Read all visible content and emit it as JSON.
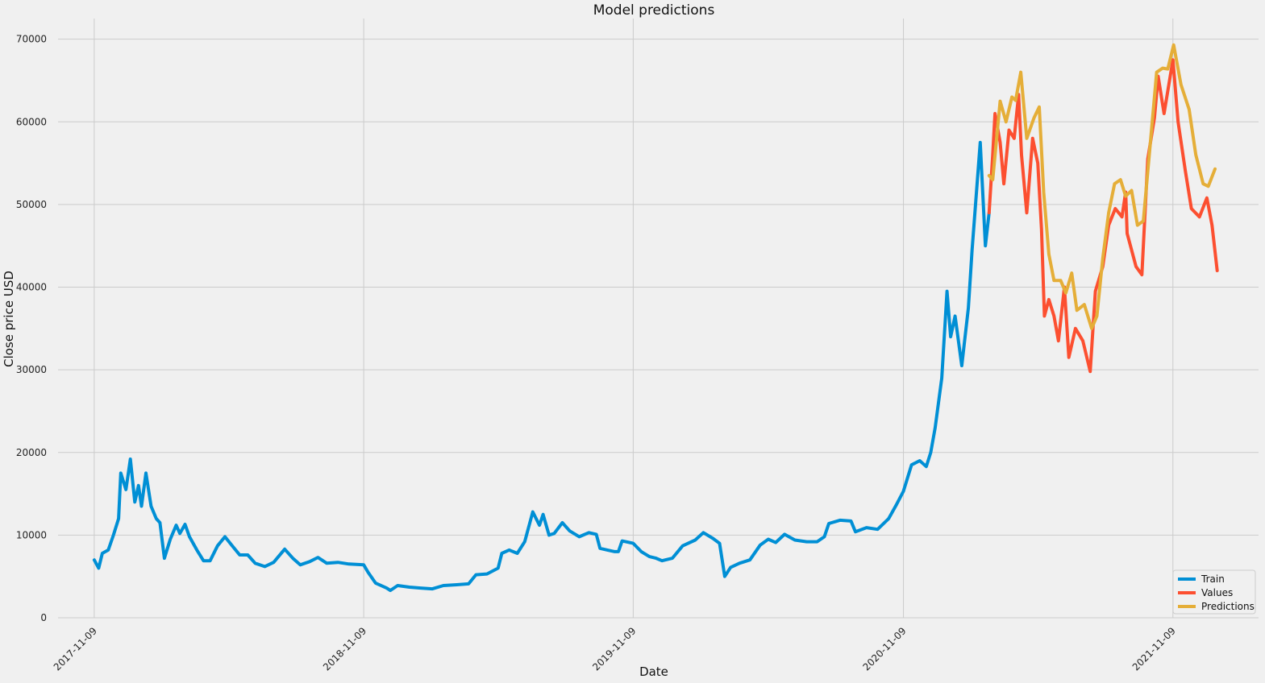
{
  "chart_data": {
    "type": "line",
    "title": "Model predictions",
    "xlabel": "Date",
    "ylabel": "Close price USD",
    "xlim": [
      "2017-09-21",
      "2022-03-05"
    ],
    "ylim": [
      0,
      72500
    ],
    "grid": true,
    "legend_position": "bottom-right",
    "xticks": [
      "2017-11-09",
      "2018-11-09",
      "2019-11-09",
      "2020-11-09",
      "2021-11-09"
    ],
    "yticks": [
      0,
      10000,
      20000,
      30000,
      40000,
      50000,
      60000,
      70000
    ],
    "series": [
      {
        "name": "Train",
        "color": "#008fd5",
        "points": [
          [
            "2017-11-09",
            7000
          ],
          [
            "2017-11-15",
            6000
          ],
          [
            "2017-11-20",
            7800
          ],
          [
            "2017-11-28",
            8200
          ],
          [
            "2017-12-05",
            10000
          ],
          [
            "2017-12-12",
            12000
          ],
          [
            "2017-12-15",
            17500
          ],
          [
            "2017-12-22",
            15500
          ],
          [
            "2017-12-28",
            19200
          ],
          [
            "2018-01-03",
            14000
          ],
          [
            "2018-01-08",
            16000
          ],
          [
            "2018-01-12",
            13500
          ],
          [
            "2018-01-18",
            17500
          ],
          [
            "2018-01-25",
            13500
          ],
          [
            "2018-02-01",
            12000
          ],
          [
            "2018-02-06",
            11500
          ],
          [
            "2018-02-12",
            7200
          ],
          [
            "2018-02-20",
            9500
          ],
          [
            "2018-02-28",
            11200
          ],
          [
            "2018-03-05",
            10200
          ],
          [
            "2018-03-12",
            11300
          ],
          [
            "2018-03-18",
            9800
          ],
          [
            "2018-03-28",
            8200
          ],
          [
            "2018-04-06",
            6900
          ],
          [
            "2018-04-15",
            6900
          ],
          [
            "2018-04-25",
            8700
          ],
          [
            "2018-05-05",
            9800
          ],
          [
            "2018-05-15",
            8700
          ],
          [
            "2018-05-25",
            7600
          ],
          [
            "2018-06-05",
            7600
          ],
          [
            "2018-06-15",
            6600
          ],
          [
            "2018-06-28",
            6200
          ],
          [
            "2018-07-10",
            6700
          ],
          [
            "2018-07-25",
            8300
          ],
          [
            "2018-08-05",
            7200
          ],
          [
            "2018-08-15",
            6400
          ],
          [
            "2018-08-28",
            6800
          ],
          [
            "2018-09-08",
            7300
          ],
          [
            "2018-09-20",
            6600
          ],
          [
            "2018-10-05",
            6700
          ],
          [
            "2018-10-20",
            6500
          ],
          [
            "2018-11-09",
            6400
          ],
          [
            "2018-11-15",
            5500
          ],
          [
            "2018-11-25",
            4200
          ],
          [
            "2018-12-10",
            3600
          ],
          [
            "2018-12-15",
            3300
          ],
          [
            "2018-12-25",
            3900
          ],
          [
            "2019-01-10",
            3700
          ],
          [
            "2019-01-25",
            3600
          ],
          [
            "2019-02-10",
            3500
          ],
          [
            "2019-02-25",
            3900
          ],
          [
            "2019-03-15",
            4000
          ],
          [
            "2019-03-31",
            4100
          ],
          [
            "2019-04-10",
            5200
          ],
          [
            "2019-04-25",
            5300
          ],
          [
            "2019-05-10",
            6000
          ],
          [
            "2019-05-15",
            7800
          ],
          [
            "2019-05-25",
            8200
          ],
          [
            "2019-06-05",
            7800
          ],
          [
            "2019-06-15",
            9200
          ],
          [
            "2019-06-26",
            12800
          ],
          [
            "2019-07-05",
            11200
          ],
          [
            "2019-07-10",
            12500
          ],
          [
            "2019-07-18",
            10000
          ],
          [
            "2019-07-25",
            10200
          ],
          [
            "2019-08-05",
            11500
          ],
          [
            "2019-08-15",
            10500
          ],
          [
            "2019-08-28",
            9800
          ],
          [
            "2019-09-10",
            10300
          ],
          [
            "2019-09-20",
            10100
          ],
          [
            "2019-09-25",
            8400
          ],
          [
            "2019-10-05",
            8200
          ],
          [
            "2019-10-15",
            8000
          ],
          [
            "2019-10-20",
            8000
          ],
          [
            "2019-10-25",
            9300
          ],
          [
            "2019-11-09",
            9000
          ],
          [
            "2019-11-20",
            8000
          ],
          [
            "2019-12-01",
            7400
          ],
          [
            "2019-12-10",
            7200
          ],
          [
            "2019-12-18",
            6900
          ],
          [
            "2020-01-01",
            7200
          ],
          [
            "2020-01-15",
            8700
          ],
          [
            "2020-02-01",
            9400
          ],
          [
            "2020-02-12",
            10300
          ],
          [
            "2020-02-25",
            9600
          ],
          [
            "2020-03-05",
            9000
          ],
          [
            "2020-03-12",
            5000
          ],
          [
            "2020-03-20",
            6100
          ],
          [
            "2020-04-01",
            6600
          ],
          [
            "2020-04-15",
            7000
          ],
          [
            "2020-04-29",
            8800
          ],
          [
            "2020-05-10",
            9500
          ],
          [
            "2020-05-20",
            9100
          ],
          [
            "2020-06-01",
            10100
          ],
          [
            "2020-06-15",
            9400
          ],
          [
            "2020-07-01",
            9200
          ],
          [
            "2020-07-15",
            9200
          ],
          [
            "2020-07-25",
            9800
          ],
          [
            "2020-07-31",
            11400
          ],
          [
            "2020-08-15",
            11800
          ],
          [
            "2020-08-30",
            11700
          ],
          [
            "2020-09-05",
            10400
          ],
          [
            "2020-09-20",
            10900
          ],
          [
            "2020-10-05",
            10700
          ],
          [
            "2020-10-20",
            12000
          ],
          [
            "2020-10-30",
            13600
          ],
          [
            "2020-11-09",
            15300
          ],
          [
            "2020-11-20",
            18500
          ],
          [
            "2020-12-01",
            19000
          ],
          [
            "2020-12-10",
            18300
          ],
          [
            "2020-12-16",
            20000
          ],
          [
            "2020-12-22",
            23000
          ],
          [
            "2020-12-31",
            29000
          ],
          [
            "2021-01-07",
            39500
          ],
          [
            "2021-01-12",
            34000
          ],
          [
            "2021-01-18",
            36500
          ],
          [
            "2021-01-27",
            30500
          ],
          [
            "2021-02-05",
            37500
          ],
          [
            "2021-02-10",
            44500
          ],
          [
            "2021-02-21",
            57500
          ],
          [
            "2021-02-28",
            45000
          ],
          [
            "2021-03-05",
            49000
          ]
        ]
      },
      {
        "name": "Values",
        "color": "#fc4f30",
        "points": [
          [
            "2021-03-05",
            49000
          ],
          [
            "2021-03-10",
            56000
          ],
          [
            "2021-03-13",
            61000
          ],
          [
            "2021-03-20",
            57500
          ],
          [
            "2021-03-25",
            52500
          ],
          [
            "2021-04-01",
            59000
          ],
          [
            "2021-04-08",
            58000
          ],
          [
            "2021-04-14",
            63300
          ],
          [
            "2021-04-18",
            56000
          ],
          [
            "2021-04-25",
            49000
          ],
          [
            "2021-05-03",
            58000
          ],
          [
            "2021-05-10",
            55000
          ],
          [
            "2021-05-15",
            47000
          ],
          [
            "2021-05-19",
            36500
          ],
          [
            "2021-05-25",
            38500
          ],
          [
            "2021-06-01",
            36500
          ],
          [
            "2021-06-07",
            33500
          ],
          [
            "2021-06-15",
            40000
          ],
          [
            "2021-06-21",
            31500
          ],
          [
            "2021-06-30",
            35000
          ],
          [
            "2021-07-10",
            33500
          ],
          [
            "2021-07-20",
            29800
          ],
          [
            "2021-07-27",
            39500
          ],
          [
            "2021-08-06",
            42500
          ],
          [
            "2021-08-14",
            47500
          ],
          [
            "2021-08-23",
            49500
          ],
          [
            "2021-09-01",
            48500
          ],
          [
            "2021-09-06",
            51500
          ],
          [
            "2021-09-08",
            46500
          ],
          [
            "2021-09-20",
            42500
          ],
          [
            "2021-09-28",
            41500
          ],
          [
            "2021-10-06",
            55500
          ],
          [
            "2021-10-15",
            60500
          ],
          [
            "2021-10-20",
            65500
          ],
          [
            "2021-10-28",
            61000
          ],
          [
            "2021-11-09",
            67500
          ],
          [
            "2021-11-16",
            60000
          ],
          [
            "2021-11-26",
            54000
          ],
          [
            "2021-12-04",
            49500
          ],
          [
            "2021-12-15",
            48500
          ],
          [
            "2021-12-25",
            50800
          ],
          [
            "2022-01-01",
            47500
          ],
          [
            "2022-01-08",
            42000
          ]
        ]
      },
      {
        "name": "Predictions",
        "color": "#e5ae38",
        "points": [
          [
            "2021-03-05",
            53500
          ],
          [
            "2021-03-10",
            53000
          ],
          [
            "2021-03-20",
            62500
          ],
          [
            "2021-03-28",
            60000
          ],
          [
            "2021-04-05",
            63000
          ],
          [
            "2021-04-10",
            62600
          ],
          [
            "2021-04-17",
            66000
          ],
          [
            "2021-04-25",
            58000
          ],
          [
            "2021-05-05",
            60500
          ],
          [
            "2021-05-12",
            61800
          ],
          [
            "2021-05-18",
            51500
          ],
          [
            "2021-05-25",
            44000
          ],
          [
            "2021-06-01",
            40800
          ],
          [
            "2021-06-10",
            40800
          ],
          [
            "2021-06-17",
            39300
          ],
          [
            "2021-06-25",
            41700
          ],
          [
            "2021-07-02",
            37200
          ],
          [
            "2021-07-12",
            37900
          ],
          [
            "2021-07-22",
            35000
          ],
          [
            "2021-07-29",
            36500
          ],
          [
            "2021-08-06",
            43500
          ],
          [
            "2021-08-14",
            49000
          ],
          [
            "2021-08-22",
            52500
          ],
          [
            "2021-08-30",
            53000
          ],
          [
            "2021-09-06",
            51000
          ],
          [
            "2021-09-14",
            51700
          ],
          [
            "2021-09-22",
            47500
          ],
          [
            "2021-09-30",
            48000
          ],
          [
            "2021-10-10",
            58000
          ],
          [
            "2021-10-18",
            66000
          ],
          [
            "2021-10-26",
            66500
          ],
          [
            "2021-11-02",
            66400
          ],
          [
            "2021-11-10",
            69300
          ],
          [
            "2021-11-20",
            64500
          ],
          [
            "2021-12-01",
            61500
          ],
          [
            "2021-12-10",
            56000
          ],
          [
            "2021-12-20",
            52500
          ],
          [
            "2021-12-27",
            52200
          ],
          [
            "2022-01-05",
            54300
          ]
        ]
      }
    ]
  }
}
